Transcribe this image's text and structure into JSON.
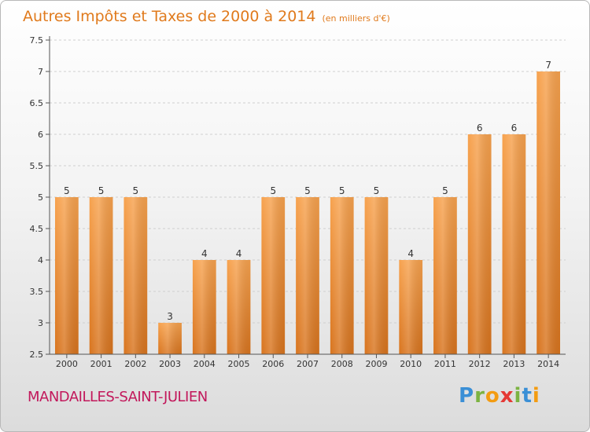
{
  "chart_data": {
    "type": "bar",
    "title": "Autres Impôts et Taxes de 2000 à 2014",
    "subtitle": "(en milliers d'€)",
    "categories": [
      "2000",
      "2001",
      "2002",
      "2003",
      "2004",
      "2005",
      "2006",
      "2007",
      "2008",
      "2009",
      "2010",
      "2011",
      "2012",
      "2013",
      "2014"
    ],
    "values": [
      5,
      5,
      5,
      3,
      4,
      4,
      5,
      5,
      5,
      5,
      4,
      5,
      6,
      6,
      7
    ],
    "ylim": [
      2.5,
      7.5
    ],
    "yticks": [
      "2.5",
      "3",
      "3.5",
      "4",
      "4.5",
      "5",
      "5.5",
      "6",
      "6.5",
      "7",
      "7.5"
    ],
    "grid": true,
    "bar_color": "#f0903a"
  },
  "footer": {
    "city": "MANDAILLES-SAINT-JULIEN",
    "logo": [
      "P",
      "r",
      "o",
      "x",
      "i",
      "t",
      "i"
    ],
    "logo_colors": [
      "#3a8fd6",
      "#7cb342",
      "#f39c12",
      "#e53935",
      "#7cb342",
      "#3a8fd6",
      "#f39c12"
    ]
  }
}
